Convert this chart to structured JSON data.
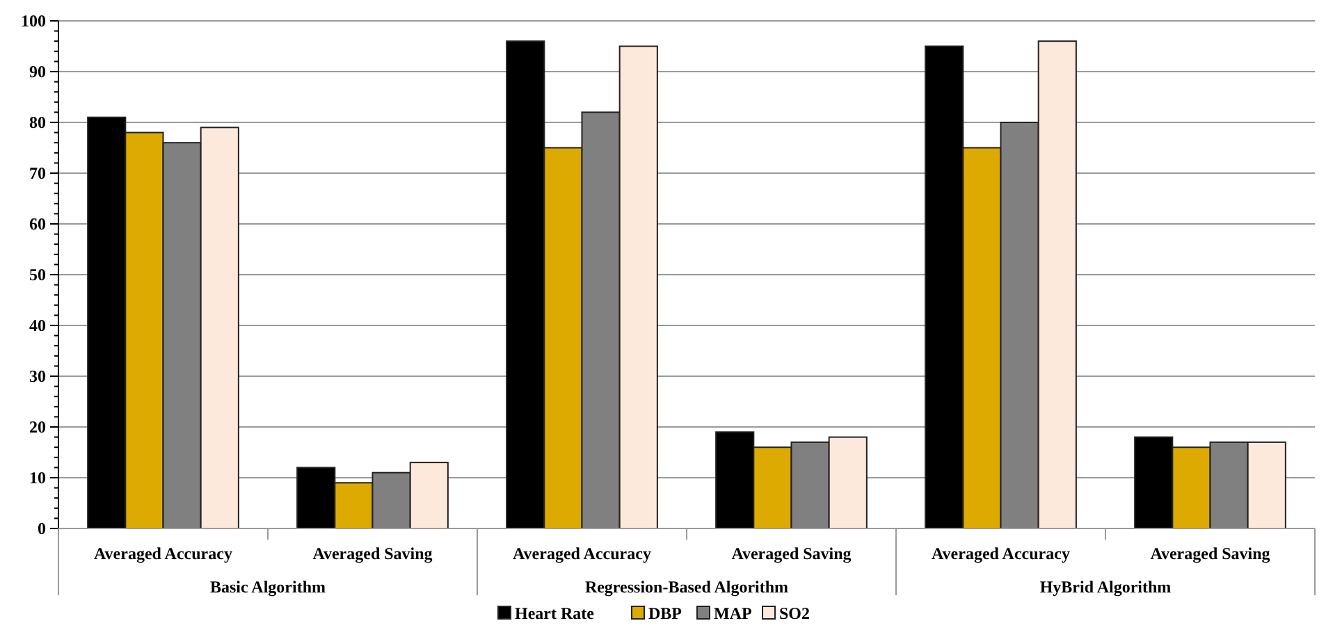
{
  "chart_data": {
    "type": "bar",
    "categories": [
      "Averaged Accuracy",
      "Averaged Saving",
      "Averaged Accuracy",
      "Averaged Saving",
      "Averaged Accuracy",
      "Averaged Saving"
    ],
    "series": [
      {
        "name": "Heart Rate",
        "color": "#000000",
        "values": [
          81,
          12,
          96,
          19,
          95,
          18
        ]
      },
      {
        "name": "DBP",
        "color": "#dcaa00",
        "values": [
          78,
          9,
          75,
          16,
          75,
          16
        ]
      },
      {
        "name": "MAP",
        "color": "#808080",
        "values": [
          76,
          11,
          82,
          17,
          80,
          17
        ]
      },
      {
        "name": "SO2",
        "color": "#fde9db",
        "values": [
          79,
          13,
          95,
          18,
          96,
          17
        ]
      }
    ],
    "annotations": [
      "Basic Algorithm",
      "Regression-Based Algorithm",
      "HyBrid Algorithm"
    ],
    "ylim": [
      0,
      100
    ],
    "yticks": [
      0,
      10,
      20,
      30,
      40,
      50,
      60,
      70,
      80,
      90,
      100
    ],
    "grid": "y",
    "legend": "bottom"
  }
}
